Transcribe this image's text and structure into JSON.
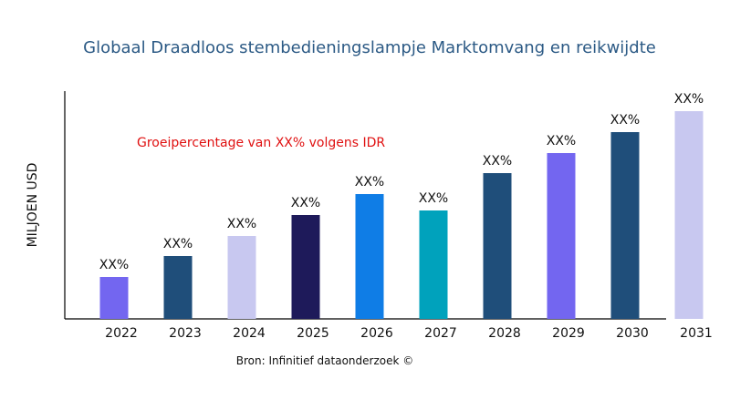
{
  "chart_data": {
    "type": "bar",
    "title": "Globaal Draadloos stembedieningslampje Marktomvang en reikwijdte",
    "ylabel": "MILJOEN USD",
    "xlabel": "",
    "annotation": "Groeipercentage van XX% volgens IDR",
    "source": "Bron: Infinitief dataonderzoek ©",
    "categories": [
      "2022",
      "2023",
      "2024",
      "2025",
      "2026",
      "2027",
      "2028",
      "2029",
      "2030",
      "2031"
    ],
    "values": [
      46,
      69,
      91,
      114,
      137,
      119,
      160,
      182,
      205,
      228
    ],
    "data_labels": [
      "XX%",
      "XX%",
      "XX%",
      "XX%",
      "XX%",
      "XX%",
      "XX%",
      "XX%",
      "XX%",
      "XX%"
    ],
    "colors": [
      "#7366f0",
      "#1f4e7a",
      "#c8c8f0",
      "#1e1a5a",
      "#0f7de6",
      "#00a2bc",
      "#1f4e7a",
      "#7366f0",
      "#1f4e7a",
      "#c8c8f0"
    ],
    "ylim": [
      0,
      250
    ],
    "grid": false,
    "title_color": "#2c5a85",
    "annotation_color": "#e01010"
  }
}
